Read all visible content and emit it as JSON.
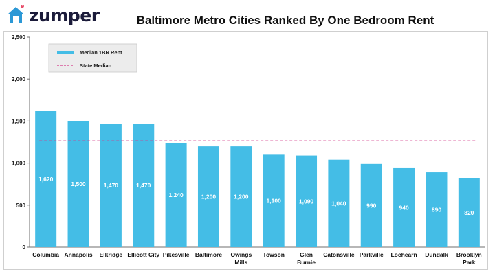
{
  "brand": {
    "name": "zumper",
    "icon": "house-heart-icon",
    "colors": {
      "text": "#1b1b3a",
      "house": "#2b98d6",
      "heart": "#e84d6a"
    }
  },
  "chart_data": {
    "type": "bar",
    "title": "Baltimore Metro Cities Ranked By One Bedroom Rent",
    "xlabel": "",
    "ylabel": "",
    "ylim": [
      0,
      2500
    ],
    "yticks": [
      0,
      500,
      1000,
      1500,
      2000,
      2500
    ],
    "ytick_labels": [
      "0",
      "500",
      "1,000",
      "1,500",
      "2,000",
      "2,500"
    ],
    "grid": false,
    "legend_position": "top-left",
    "categories": [
      [
        "Columbia"
      ],
      [
        "Annapolis"
      ],
      [
        "Elkridge"
      ],
      [
        "Ellicott City"
      ],
      [
        "Pikesville"
      ],
      [
        "Baltimore"
      ],
      [
        "Owings",
        "Mills"
      ],
      [
        "Towson"
      ],
      [
        "Glen",
        "Burnie"
      ],
      [
        "Catonsville"
      ],
      [
        "Parkville"
      ],
      [
        "Lochearn"
      ],
      [
        "Dundalk"
      ],
      [
        "Brooklyn",
        "Park"
      ]
    ],
    "series": [
      {
        "name": "Median 1BR Rent",
        "color": "#44bde6",
        "values": [
          1620,
          1500,
          1470,
          1470,
          1240,
          1200,
          1200,
          1100,
          1090,
          1040,
          990,
          940,
          890,
          820
        ],
        "labels": [
          "1,620",
          "1,500",
          "1,470",
          "1,470",
          "1,240",
          "1,200",
          "1,200",
          "1,100",
          "1,090",
          "1,040",
          "990",
          "940",
          "890",
          "820"
        ]
      }
    ],
    "reference_lines": [
      {
        "name": "State Median",
        "value": 1265,
        "color": "#d43c8a",
        "style": "dashed"
      }
    ],
    "legend_bg": "#ececec",
    "label_color": "#ffffff"
  }
}
